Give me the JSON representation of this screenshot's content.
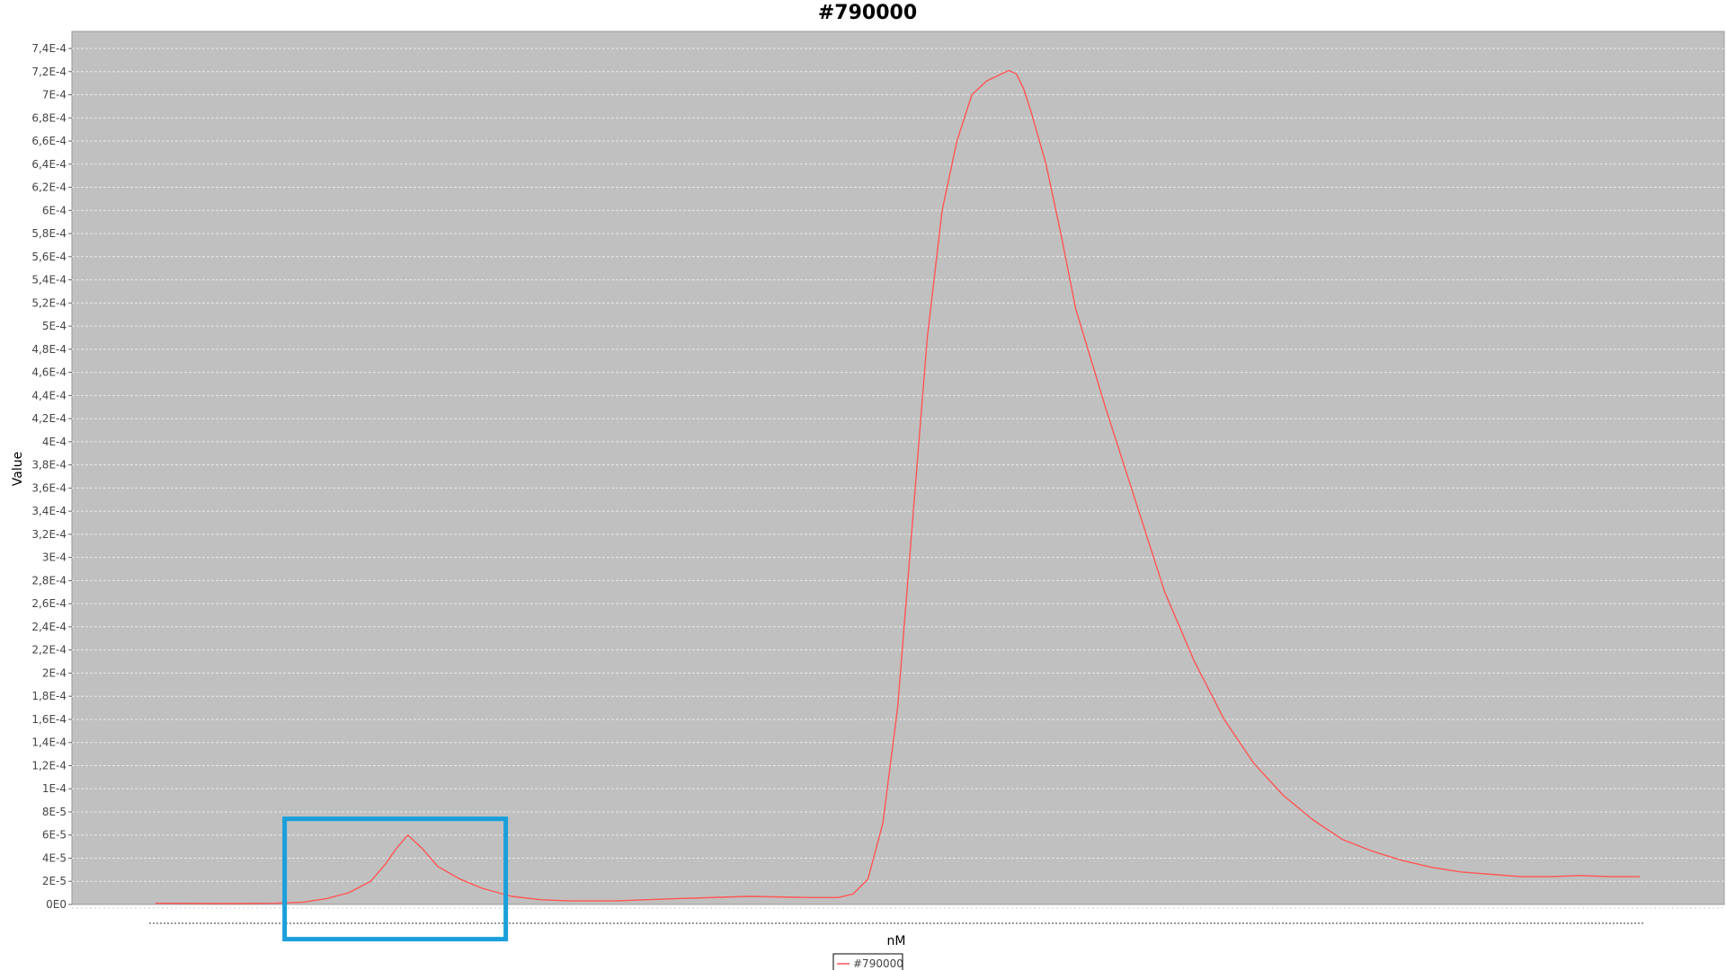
{
  "chart_data": {
    "type": "line",
    "title": "#790000",
    "xlabel": "nM",
    "ylabel": "Value",
    "ylim": [
      0,
      0.00074
    ],
    "xlim": [
      0,
      100
    ],
    "y_tick_values": [
      0,
      2e-05,
      4e-05,
      6e-05,
      8e-05,
      0.0001,
      0.00012,
      0.00014,
      0.00016,
      0.00018,
      0.0002,
      0.00022,
      0.00024,
      0.00026,
      0.00028,
      0.0003,
      0.00032,
      0.00034,
      0.00036,
      0.00038,
      0.0004,
      0.00042,
      0.00044,
      0.00046,
      0.00048,
      0.0005,
      0.00052,
      0.00054,
      0.00056,
      0.00058,
      0.0006,
      0.00062,
      0.00064,
      0.00066,
      0.00068,
      0.0007,
      0.00072,
      0.00074
    ],
    "y_tick_labels": [
      "0E0",
      "2E-5",
      "4E-5",
      "6E-5",
      "8E-5",
      "1E-4",
      "1,2E-4",
      "1,4E-4",
      "1,6E-4",
      "1,8E-4",
      "2E-4",
      "2,2E-4",
      "2,4E-4",
      "2,6E-4",
      "2,8E-4",
      "3E-4",
      "3,2E-4",
      "3,4E-4",
      "3,6E-4",
      "3,8E-4",
      "4E-4",
      "4,2E-4",
      "4,4E-4",
      "4,6E-4",
      "4,8E-4",
      "5E-4",
      "5,2E-4",
      "5,4E-4",
      "5,6E-4",
      "5,8E-4",
      "6E-4",
      "6,2E-4",
      "6,4E-4",
      "6,6E-4",
      "6,8E-4",
      "7E-4",
      "7,2E-4",
      "7,4E-4"
    ],
    "grid": true,
    "legend_position": "bottom-center",
    "colors": {
      "plot_background": "#c0c0c0",
      "series": "#ff5555",
      "gridline": "#e8e8e8",
      "highlight_box": "#1a9fdb"
    },
    "series": [
      {
        "name": "#790000",
        "x": [
          0,
          5,
          8,
          10,
          11.5,
          13,
          14.5,
          15.5,
          16.2,
          17,
          18,
          19,
          20.5,
          22,
          24,
          26,
          28,
          31,
          35,
          40,
          44,
          46,
          47,
          48,
          49,
          50,
          51,
          52,
          53,
          54,
          55,
          56,
          57,
          57.5,
          58,
          58.5,
          59,
          60,
          61,
          62,
          64,
          66,
          68,
          70,
          72,
          74,
          76,
          78,
          80,
          82,
          84,
          86,
          88,
          90,
          92,
          94,
          96,
          98,
          100
        ],
        "y": [
          1e-06,
          8e-07,
          1e-06,
          2e-06,
          5e-06,
          1e-05,
          2e-05,
          3.5e-05,
          4.8e-05,
          6e-05,
          4.8e-05,
          3.3e-05,
          2.2e-05,
          1.4e-05,
          7e-06,
          4e-06,
          3e-06,
          3e-06,
          5e-06,
          7e-06,
          6e-06,
          6e-06,
          9e-06,
          2.2e-05,
          7e-05,
          0.00017,
          0.00033,
          0.00049,
          0.0006,
          0.00066,
          0.0007,
          0.000712,
          0.000718,
          0.000721,
          0.000718,
          0.000705,
          0.000685,
          0.00064,
          0.00058,
          0.000515,
          0.00043,
          0.00035,
          0.00027,
          0.00021,
          0.00016,
          0.000122,
          9.4e-05,
          7.3e-05,
          5.6e-05,
          4.6e-05,
          3.8e-05,
          3.2e-05,
          2.8e-05,
          2.6e-05,
          2.4e-05,
          2.4e-05,
          2.5e-05,
          2.4e-05,
          2.4e-05
        ]
      }
    ],
    "annotations": [
      {
        "type": "highlight-box",
        "x_range": [
          8.7,
          23.6
        ],
        "y_range": [
          -3e-05,
          7.4e-05
        ]
      }
    ]
  }
}
